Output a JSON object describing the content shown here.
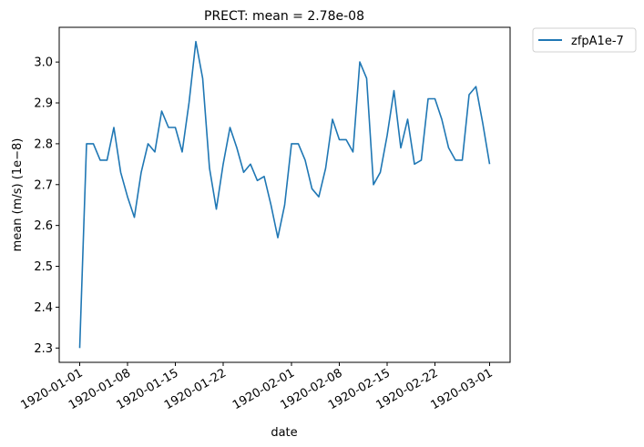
{
  "chart_data": {
    "type": "line",
    "title": "PRECT: mean =  2.78e-08",
    "xlabel": "date",
    "ylabel": "mean (m/s) (1e−8)",
    "xlim": [
      "1919-12-29",
      "1920-03-04"
    ],
    "ylim": [
      2.265,
      3.085
    ],
    "x_ticks": [
      "1920-01-01",
      "1920-01-08",
      "1920-01-15",
      "1920-01-22",
      "1920-02-01",
      "1920-02-08",
      "1920-02-15",
      "1920-02-22",
      "1920-03-01"
    ],
    "y_ticks": [
      "2.3",
      "2.4",
      "2.5",
      "2.6",
      "2.7",
      "2.8",
      "2.9",
      "3.0"
    ],
    "legend_position": "outside top-right",
    "grid": false,
    "series": [
      {
        "name": "zfpA1e-7",
        "color": "#1f77b4",
        "x": [
          "1920-01-01",
          "1920-01-02",
          "1920-01-03",
          "1920-01-04",
          "1920-01-05",
          "1920-01-06",
          "1920-01-07",
          "1920-01-08",
          "1920-01-09",
          "1920-01-10",
          "1920-01-11",
          "1920-01-12",
          "1920-01-13",
          "1920-01-14",
          "1920-01-15",
          "1920-01-16",
          "1920-01-17",
          "1920-01-18",
          "1920-01-19",
          "1920-01-20",
          "1920-01-21",
          "1920-01-22",
          "1920-01-23",
          "1920-01-24",
          "1920-01-25",
          "1920-01-26",
          "1920-01-27",
          "1920-01-28",
          "1920-01-29",
          "1920-01-30",
          "1920-01-31",
          "1920-02-01",
          "1920-02-02",
          "1920-02-03",
          "1920-02-04",
          "1920-02-05",
          "1920-02-06",
          "1920-02-07",
          "1920-02-08",
          "1920-02-09",
          "1920-02-10",
          "1920-02-11",
          "1920-02-12",
          "1920-02-13",
          "1920-02-14",
          "1920-02-15",
          "1920-02-16",
          "1920-02-17",
          "1920-02-18",
          "1920-02-19",
          "1920-02-20",
          "1920-02-21",
          "1920-02-22",
          "1920-02-23",
          "1920-02-24",
          "1920-02-25",
          "1920-02-26",
          "1920-02-27",
          "1920-02-28",
          "1920-02-29",
          "1920-03-01"
        ],
        "values": [
          2.3,
          2.8,
          2.8,
          2.76,
          2.76,
          2.84,
          2.73,
          2.67,
          2.62,
          2.73,
          2.8,
          2.78,
          2.88,
          2.84,
          2.84,
          2.78,
          2.9,
          3.05,
          2.96,
          2.74,
          2.64,
          2.75,
          2.84,
          2.79,
          2.73,
          2.75,
          2.71,
          2.72,
          2.65,
          2.57,
          2.65,
          2.8,
          2.8,
          2.76,
          2.69,
          2.67,
          2.74,
          2.86,
          2.81,
          2.81,
          2.78,
          3.0,
          2.96,
          2.7,
          2.73,
          2.82,
          2.93,
          2.79,
          2.86,
          2.75,
          2.76,
          2.91,
          2.91,
          2.86,
          2.79,
          2.76,
          2.76,
          2.92,
          2.94,
          2.85,
          2.75
        ]
      }
    ]
  }
}
